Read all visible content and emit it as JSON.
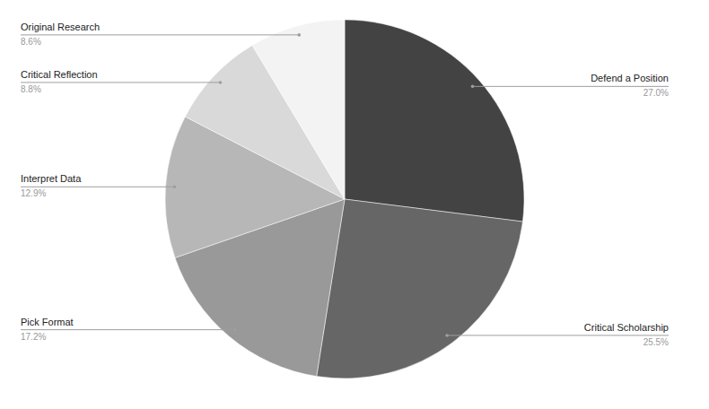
{
  "chart_data": {
    "type": "pie",
    "categories": [
      "Defend a Position",
      "Critical Scholarship",
      "Pick Format",
      "Interpret Data",
      "Critical Reflection",
      "Original Research"
    ],
    "values": [
      27.0,
      25.5,
      17.2,
      12.9,
      8.8,
      8.6
    ],
    "value_labels": [
      "27.0%",
      "25.5%",
      "17.2%",
      "12.9%",
      "8.8%",
      "8.6%"
    ],
    "colors": [
      "#434343",
      "#666666",
      "#999999",
      "#b7b7b7",
      "#d9d9d9",
      "#f3f3f3"
    ],
    "data_labels": true
  }
}
